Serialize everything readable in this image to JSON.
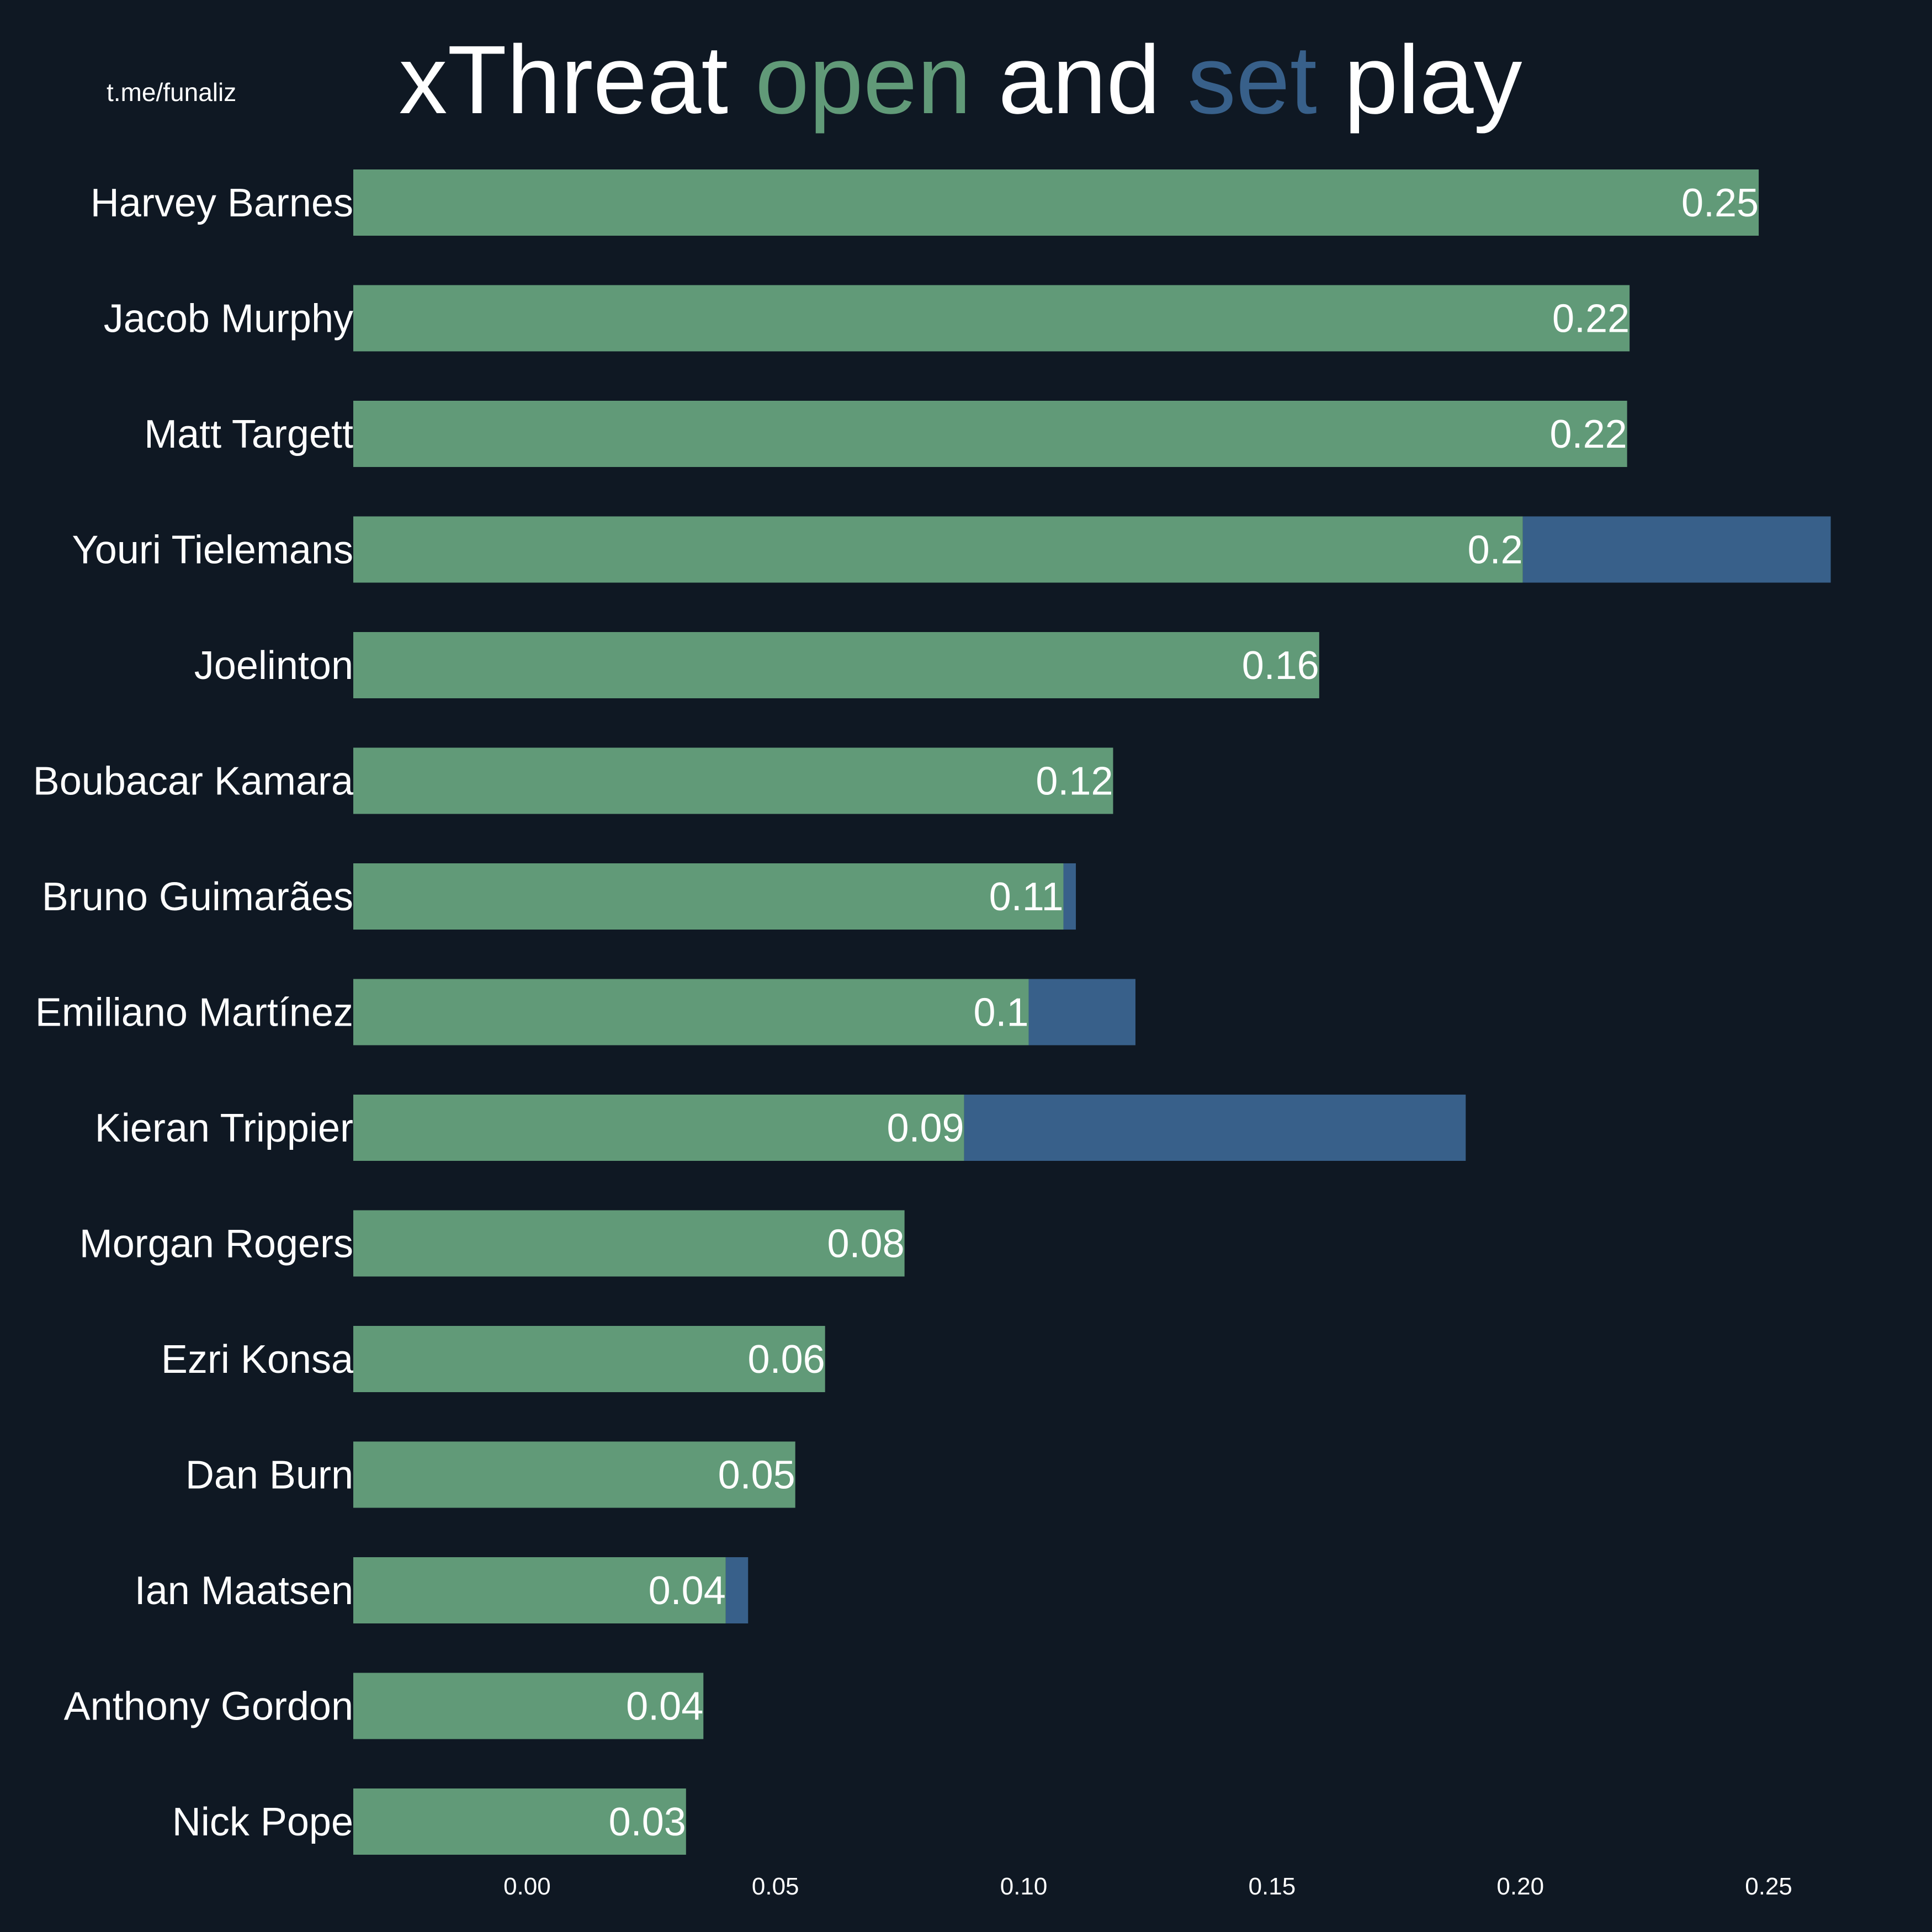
{
  "watermark": "t.me/funaliz",
  "title": {
    "parts": [
      {
        "text": "xThreat ",
        "color": "#ffffff"
      },
      {
        "text": "open",
        "color": "#619a78"
      },
      {
        "text": " and ",
        "color": "#ffffff"
      },
      {
        "text": "set",
        "color": "#38608a"
      },
      {
        "text": " play",
        "color": "#ffffff"
      }
    ]
  },
  "colors": {
    "background": "#0f1823",
    "open_play": "#619a78",
    "set_play": "#38608a",
    "text": "#ffffff"
  },
  "chart_data": {
    "type": "bar",
    "orientation": "horizontal",
    "stacked": true,
    "categories": [
      "Harvey Barnes",
      "Jacob Murphy",
      "Matt Targett",
      "Youri Tielemans",
      "Joelinton",
      "Boubacar Kamara",
      "Bruno Guimarães",
      "Emiliano Martínez",
      "Kieran Trippier",
      "Morgan Rogers",
      "Ezri Konsa",
      "Dan Burn",
      "Ian Maatsen",
      "Anthony Gordon",
      "Nick Pope"
    ],
    "series": [
      {
        "key": "open",
        "color": "#619a78",
        "values": [
          0.248,
          0.222,
          0.2215,
          0.2005,
          0.1595,
          0.118,
          0.108,
          0.101,
          0.088,
          0.076,
          0.06,
          0.054,
          0.04,
          0.0355,
          0.032
        ]
      },
      {
        "key": "set",
        "color": "#38608a",
        "values": [
          0,
          0,
          0,
          0.062,
          0,
          0,
          0.0025,
          0.0215,
          0.101,
          0,
          0,
          0,
          0.0045,
          0,
          0
        ]
      }
    ],
    "data_labels": [
      "0.25",
      "0.22",
      "0.22",
      "0.2",
      "0.16",
      "0.12",
      "0.11",
      "0.1",
      "0.09",
      "0.08",
      "0.06",
      "0.05",
      "0.04",
      "0.04",
      "0.03"
    ],
    "xlim": [
      -0.035,
      0.272
    ],
    "xticks": [
      0.0,
      0.05,
      0.1,
      0.15,
      0.2,
      0.25
    ],
    "xtick_labels": [
      "0.00",
      "0.05",
      "0.10",
      "0.15",
      "0.20",
      "0.25"
    ],
    "xlabel": "",
    "ylabel": "",
    "grid": false,
    "legend": "none"
  }
}
